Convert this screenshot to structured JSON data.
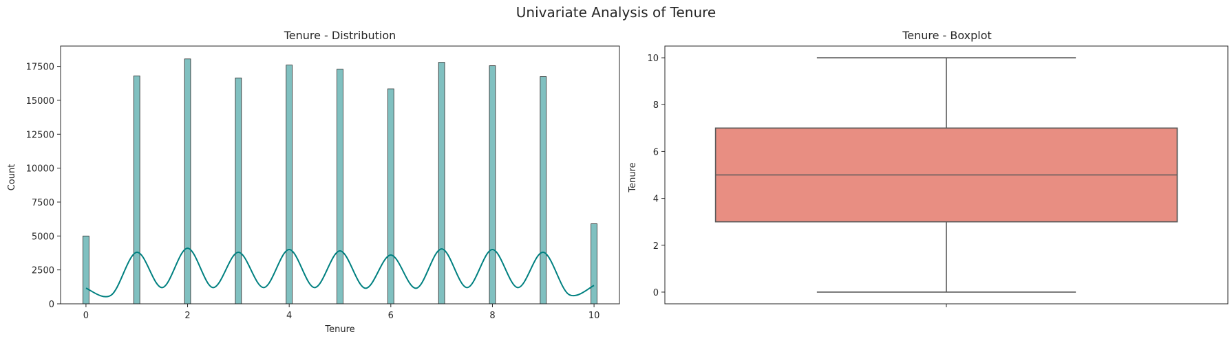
{
  "figure": {
    "title": "Univariate Analysis of Tenure"
  },
  "chart_data": [
    {
      "type": "bar",
      "title": "Tenure - Distribution",
      "xlabel": "Tenure",
      "ylabel": "Count",
      "xlim": [
        -0.5,
        10.5
      ],
      "ylim": [
        0,
        19000
      ],
      "x_ticks": [
        0,
        2,
        4,
        6,
        8,
        10
      ],
      "y_ticks": [
        0,
        2500,
        5000,
        7500,
        10000,
        12500,
        15000,
        17500
      ],
      "x": [
        0,
        1,
        2,
        3,
        4,
        5,
        6,
        7,
        8,
        9,
        10
      ],
      "values": [
        5000,
        16800,
        18050,
        16650,
        17600,
        17300,
        15850,
        17800,
        17550,
        16750,
        5900
      ],
      "bar_width": 0.12,
      "colors": {
        "bar_fill": "#80c0c0",
        "bar_edge": "#262626",
        "kde": "#008080"
      },
      "kde": {
        "x": [
          0,
          0.5,
          1,
          1.5,
          2,
          2.5,
          3,
          3.5,
          4,
          4.5,
          5,
          5.5,
          6,
          6.5,
          7,
          7.5,
          8,
          8.5,
          9,
          9.5,
          10
        ],
        "y": [
          1150,
          650,
          3800,
          1200,
          4100,
          1200,
          3800,
          1200,
          4000,
          1200,
          3900,
          1150,
          3600,
          1150,
          4050,
          1200,
          4000,
          1200,
          3800,
          700,
          1350
        ]
      },
      "grid": false
    },
    {
      "type": "box",
      "title": "Tenure - Boxplot",
      "ylabel": "Tenure",
      "ylim": [
        -0.5,
        10.5
      ],
      "y_ticks": [
        0,
        2,
        4,
        6,
        8,
        10
      ],
      "stats": {
        "min": 0,
        "q1": 3,
        "median": 5,
        "q3": 7,
        "max": 10
      },
      "colors": {
        "box_fill": "#e88e82",
        "line": "#595959"
      },
      "grid": false
    }
  ]
}
